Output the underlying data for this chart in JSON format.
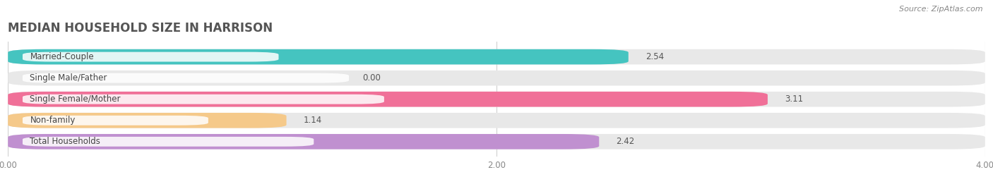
{
  "title": "MEDIAN HOUSEHOLD SIZE IN HARRISON",
  "source": "Source: ZipAtlas.com",
  "categories": [
    "Married-Couple",
    "Single Male/Father",
    "Single Female/Mother",
    "Non-family",
    "Total Households"
  ],
  "values": [
    2.54,
    0.0,
    3.11,
    1.14,
    2.42
  ],
  "colors": [
    "#45c4c0",
    "#a8c4e8",
    "#f07098",
    "#f5c98a",
    "#c090d0"
  ],
  "xlim": [
    0,
    4.0
  ],
  "xticks": [
    0.0,
    2.0,
    4.0
  ],
  "bg_color": "#ffffff",
  "bar_bg_color": "#e8e8e8",
  "title_fontsize": 12,
  "label_fontsize": 8.5,
  "value_fontsize": 8.5
}
